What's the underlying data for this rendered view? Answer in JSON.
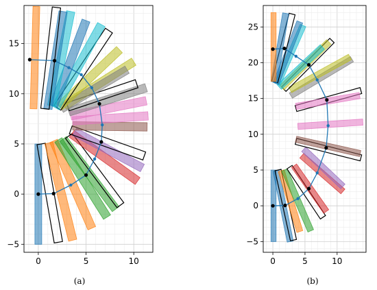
{
  "chart_data": [
    {
      "type": "scatter",
      "caption": "(a)",
      "xlim": [
        -1.5,
        12
      ],
      "ylim": [
        -5.8,
        18.8
      ],
      "xticks": [
        0,
        5,
        10
      ],
      "yticks": [
        -5,
        0,
        5,
        10,
        15
      ],
      "grid": true,
      "arc_points": [
        {
          "x": 0,
          "y": 0,
          "dot": "black"
        },
        {
          "x": 1.6,
          "y": 0.05,
          "dot": "black"
        },
        {
          "x": 3.4,
          "y": 0.9,
          "dot": "blue"
        },
        {
          "x": 5.0,
          "y": 1.9,
          "dot": "black"
        },
        {
          "x": 5.9,
          "y": 3.5,
          "dot": "blue"
        },
        {
          "x": 6.6,
          "y": 5.2,
          "dot": "black"
        },
        {
          "x": 6.7,
          "y": 6.9,
          "dot": "blue"
        },
        {
          "x": 6.4,
          "y": 9.0,
          "dot": "black"
        },
        {
          "x": 5.6,
          "y": 10.6,
          "dot": "blue"
        },
        {
          "x": 4.5,
          "y": 11.9,
          "dot": "blue"
        },
        {
          "x": 3.2,
          "y": 12.6,
          "dot": "blue"
        },
        {
          "x": 1.7,
          "y": 13.3,
          "dot": "black"
        },
        {
          "x": -0.9,
          "y": 13.4,
          "dot": "black"
        }
      ],
      "bars": [
        {
          "x1": 0.0,
          "y1": 5.0,
          "x2": 0.0,
          "y2": -5.0,
          "color": "#1f77b4",
          "w": 0.45,
          "outlined": false
        },
        {
          "x1": 0.3,
          "y1": 5.0,
          "x2": 2.1,
          "y2": -4.8,
          "color": "#000000",
          "w": 0.55,
          "outlined": true
        },
        {
          "x1": 1.1,
          "y1": 5.1,
          "x2": 3.6,
          "y2": -4.6,
          "color": "#ff7f0e",
          "w": 0.55,
          "outlined": false
        },
        {
          "x1": 1.6,
          "y1": 5.3,
          "x2": 5.6,
          "y2": -3.4,
          "color": "#ff7f0e",
          "w": 0.55,
          "outlined": false
        },
        {
          "x1": 2.1,
          "y1": 5.4,
          "x2": 7.2,
          "y2": -2.3,
          "color": "#2ca02c",
          "w": 0.55,
          "outlined": false
        },
        {
          "x1": 2.6,
          "y1": 5.5,
          "x2": 8.1,
          "y2": -1.5,
          "color": "#2ca02c",
          "w": 0.55,
          "outlined": false
        },
        {
          "x1": 3.2,
          "y1": 5.8,
          "x2": 8.6,
          "y2": -1.1,
          "color": "#000000",
          "w": 0.55,
          "outlined": true
        },
        {
          "x1": 3.5,
          "y1": 6.0,
          "x2": 10.4,
          "y2": 1.3,
          "color": "#d62728",
          "w": 0.55,
          "outlined": false
        },
        {
          "x1": 3.8,
          "y1": 6.2,
          "x2": 10.9,
          "y2": 2.6,
          "color": "#9467bd",
          "w": 0.55,
          "outlined": false
        },
        {
          "x1": 3.4,
          "y1": 6.4,
          "x2": 11.1,
          "y2": 3.8,
          "color": "#000000",
          "w": 0.55,
          "outlined": true
        },
        {
          "x1": 3.6,
          "y1": 6.8,
          "x2": 11.4,
          "y2": 6.7,
          "color": "#8c564b",
          "w": 0.55,
          "outlined": false
        },
        {
          "x1": 3.6,
          "y1": 7.3,
          "x2": 11.5,
          "y2": 7.8,
          "color": "#e377c2",
          "w": 0.55,
          "outlined": false
        },
        {
          "x1": 3.4,
          "y1": 7.8,
          "x2": 11.3,
          "y2": 9.3,
          "color": "#e377c2",
          "w": 0.55,
          "outlined": false
        },
        {
          "x1": 3.2,
          "y1": 8.2,
          "x2": 11.3,
          "y2": 10.6,
          "color": "#7f7f7f",
          "w": 0.55,
          "outlined": false
        },
        {
          "x1": 3.1,
          "y1": 8.7,
          "x2": 10.3,
          "y2": 11.0,
          "color": "#000000",
          "w": 0.55,
          "outlined": true
        },
        {
          "x1": 2.7,
          "y1": 8.8,
          "x2": 10.0,
          "y2": 13.2,
          "color": "#bcbd22",
          "w": 0.55,
          "outlined": false
        },
        {
          "x1": 2.4,
          "y1": 8.5,
          "x2": 9.3,
          "y2": 12.4,
          "color": "#7f7f7f",
          "w": 0.55,
          "outlined": false
        },
        {
          "x1": 2.2,
          "y1": 8.7,
          "x2": 8.5,
          "y2": 14.4,
          "color": "#bcbd22",
          "w": 0.55,
          "outlined": false
        },
        {
          "x1": 2.0,
          "y1": 8.6,
          "x2": 7.4,
          "y2": 16.3,
          "color": "#000000",
          "w": 0.55,
          "outlined": true
        },
        {
          "x1": 1.8,
          "y1": 8.6,
          "x2": 6.6,
          "y2": 16.9,
          "color": "#17becf",
          "w": 0.55,
          "outlined": false
        },
        {
          "x1": 1.6,
          "y1": 8.8,
          "x2": 5.0,
          "y2": 17.3,
          "color": "#1f77b4",
          "w": 0.55,
          "outlined": false
        },
        {
          "x1": 1.4,
          "y1": 8.8,
          "x2": 3.4,
          "y2": 18.2,
          "color": "#17becf",
          "w": 0.55,
          "outlined": false
        },
        {
          "x1": 1.0,
          "y1": 8.5,
          "x2": 2.6,
          "y2": 18.2,
          "color": "#1f77b4",
          "w": 0.55,
          "outlined": false
        },
        {
          "x1": 0.7,
          "y1": 8.5,
          "x2": 1.9,
          "y2": 18.6,
          "color": "#000000",
          "w": 0.55,
          "outlined": true
        },
        {
          "x1": -0.5,
          "y1": 8.5,
          "x2": -0.2,
          "y2": 18.7,
          "color": "#ff7f0e",
          "w": 0.45,
          "outlined": false
        }
      ]
    },
    {
      "type": "scatter",
      "caption": "(b)",
      "xlim": [
        -1.5,
        14.5
      ],
      "ylim": [
        -6.5,
        28
      ],
      "xticks": [
        0,
        5,
        10
      ],
      "yticks": [
        -5,
        0,
        5,
        10,
        15,
        20,
        25
      ],
      "grid": true,
      "arc_points": [
        {
          "x": 0,
          "y": 0,
          "dot": "black"
        },
        {
          "x": 1.9,
          "y": 0.05,
          "dot": "black"
        },
        {
          "x": 3.9,
          "y": 1.0,
          "dot": "blue"
        },
        {
          "x": 5.6,
          "y": 2.4,
          "dot": "black"
        },
        {
          "x": 6.9,
          "y": 4.6,
          "dot": "blue"
        },
        {
          "x": 8.3,
          "y": 8.1,
          "dot": "black"
        },
        {
          "x": 8.6,
          "y": 11.2,
          "dot": "blue"
        },
        {
          "x": 8.4,
          "y": 14.8,
          "dot": "black"
        },
        {
          "x": 6.9,
          "y": 17.6,
          "dot": "blue"
        },
        {
          "x": 5.6,
          "y": 19.7,
          "dot": "black"
        },
        {
          "x": 3.6,
          "y": 20.9,
          "dot": "blue"
        },
        {
          "x": 1.8,
          "y": 22.0,
          "dot": "black"
        },
        {
          "x": 0,
          "y": 21.9,
          "dot": "black"
        }
      ],
      "bars": [
        {
          "x1": 0.1,
          "y1": 5.0,
          "x2": 0.1,
          "y2": -5.0,
          "color": "#1f77b4",
          "w": 0.5,
          "outlined": false
        },
        {
          "x1": 0.5,
          "y1": 4.9,
          "x2": 2.7,
          "y2": -5.0,
          "color": "#1f77b4",
          "w": 0.6,
          "outlined": false
        },
        {
          "x1": 0.8,
          "y1": 5.0,
          "x2": 3.2,
          "y2": -4.8,
          "color": "#000000",
          "w": 0.6,
          "outlined": true
        },
        {
          "x1": 1.3,
          "y1": 4.9,
          "x2": 4.2,
          "y2": -3.6,
          "color": "#ff7f0e",
          "w": 0.6,
          "outlined": false
        },
        {
          "x1": 1.8,
          "y1": 5.0,
          "x2": 5.9,
          "y2": -3.5,
          "color": "#2ca02c",
          "w": 0.6,
          "outlined": false
        },
        {
          "x1": 2.6,
          "y1": 5.4,
          "x2": 7.8,
          "y2": -1.6,
          "color": "#000000",
          "w": 0.6,
          "outlined": true
        },
        {
          "x1": 3.3,
          "y1": 5.6,
          "x2": 8.3,
          "y2": -0.8,
          "color": "#d62728",
          "w": 0.6,
          "outlined": false
        },
        {
          "x1": 4.5,
          "y1": 7.0,
          "x2": 10.9,
          "y2": 2.0,
          "color": "#d62728",
          "w": 0.6,
          "outlined": false
        },
        {
          "x1": 4.8,
          "y1": 7.9,
          "x2": 10.9,
          "y2": 2.7,
          "color": "#9467bd",
          "w": 0.6,
          "outlined": false
        },
        {
          "x1": 3.6,
          "y1": 9.0,
          "x2": 13.7,
          "y2": 6.7,
          "color": "#000000",
          "w": 0.6,
          "outlined": true
        },
        {
          "x1": 3.6,
          "y1": 9.3,
          "x2": 13.6,
          "y2": 7.3,
          "color": "#8c564b",
          "w": 0.6,
          "outlined": false
        },
        {
          "x1": 3.9,
          "y1": 11.1,
          "x2": 14.0,
          "y2": 11.7,
          "color": "#e377c2",
          "w": 0.6,
          "outlined": false
        },
        {
          "x1": 3.6,
          "y1": 13.6,
          "x2": 13.7,
          "y2": 16.1,
          "color": "#000000",
          "w": 0.6,
          "outlined": true
        },
        {
          "x1": 3.6,
          "y1": 13.9,
          "x2": 13.5,
          "y2": 15.4,
          "color": "#e377c2",
          "w": 0.6,
          "outlined": false
        },
        {
          "x1": 2.8,
          "y1": 15.4,
          "x2": 12.3,
          "y2": 20.5,
          "color": "#7f7f7f",
          "w": 0.6,
          "outlined": false
        },
        {
          "x1": 2.7,
          "y1": 16.2,
          "x2": 12.0,
          "y2": 20.8,
          "color": "#bcbd22",
          "w": 0.6,
          "outlined": false
        },
        {
          "x1": 1.7,
          "y1": 16.3,
          "x2": 9.2,
          "y2": 23.1,
          "color": "#000000",
          "w": 0.6,
          "outlined": true
        },
        {
          "x1": 1.4,
          "y1": 16.5,
          "x2": 8.7,
          "y2": 22.9,
          "color": "#bcbd22",
          "w": 0.6,
          "outlined": false
        },
        {
          "x1": 1.0,
          "y1": 16.6,
          "x2": 7.7,
          "y2": 22.2,
          "color": "#17becf",
          "w": 0.6,
          "outlined": false
        },
        {
          "x1": 0.7,
          "y1": 17.0,
          "x2": 4.7,
          "y2": 25.2,
          "color": "#17becf",
          "w": 0.6,
          "outlined": false
        },
        {
          "x1": 0.5,
          "y1": 17.1,
          "x2": 4.2,
          "y2": 25.7,
          "color": "#1f77b4",
          "w": 0.6,
          "outlined": false
        },
        {
          "x1": 0.3,
          "y1": 17.3,
          "x2": 3.0,
          "y2": 26.8,
          "color": "#000000",
          "w": 0.6,
          "outlined": true
        },
        {
          "x1": 0.2,
          "y1": 17.3,
          "x2": 2.0,
          "y2": 26.9,
          "color": "#1f77b4",
          "w": 0.6,
          "outlined": false
        },
        {
          "x1": 0.1,
          "y1": 17.4,
          "x2": 0.1,
          "y2": 27.0,
          "color": "#ff7f0e",
          "w": 0.5,
          "outlined": false
        }
      ]
    }
  ]
}
